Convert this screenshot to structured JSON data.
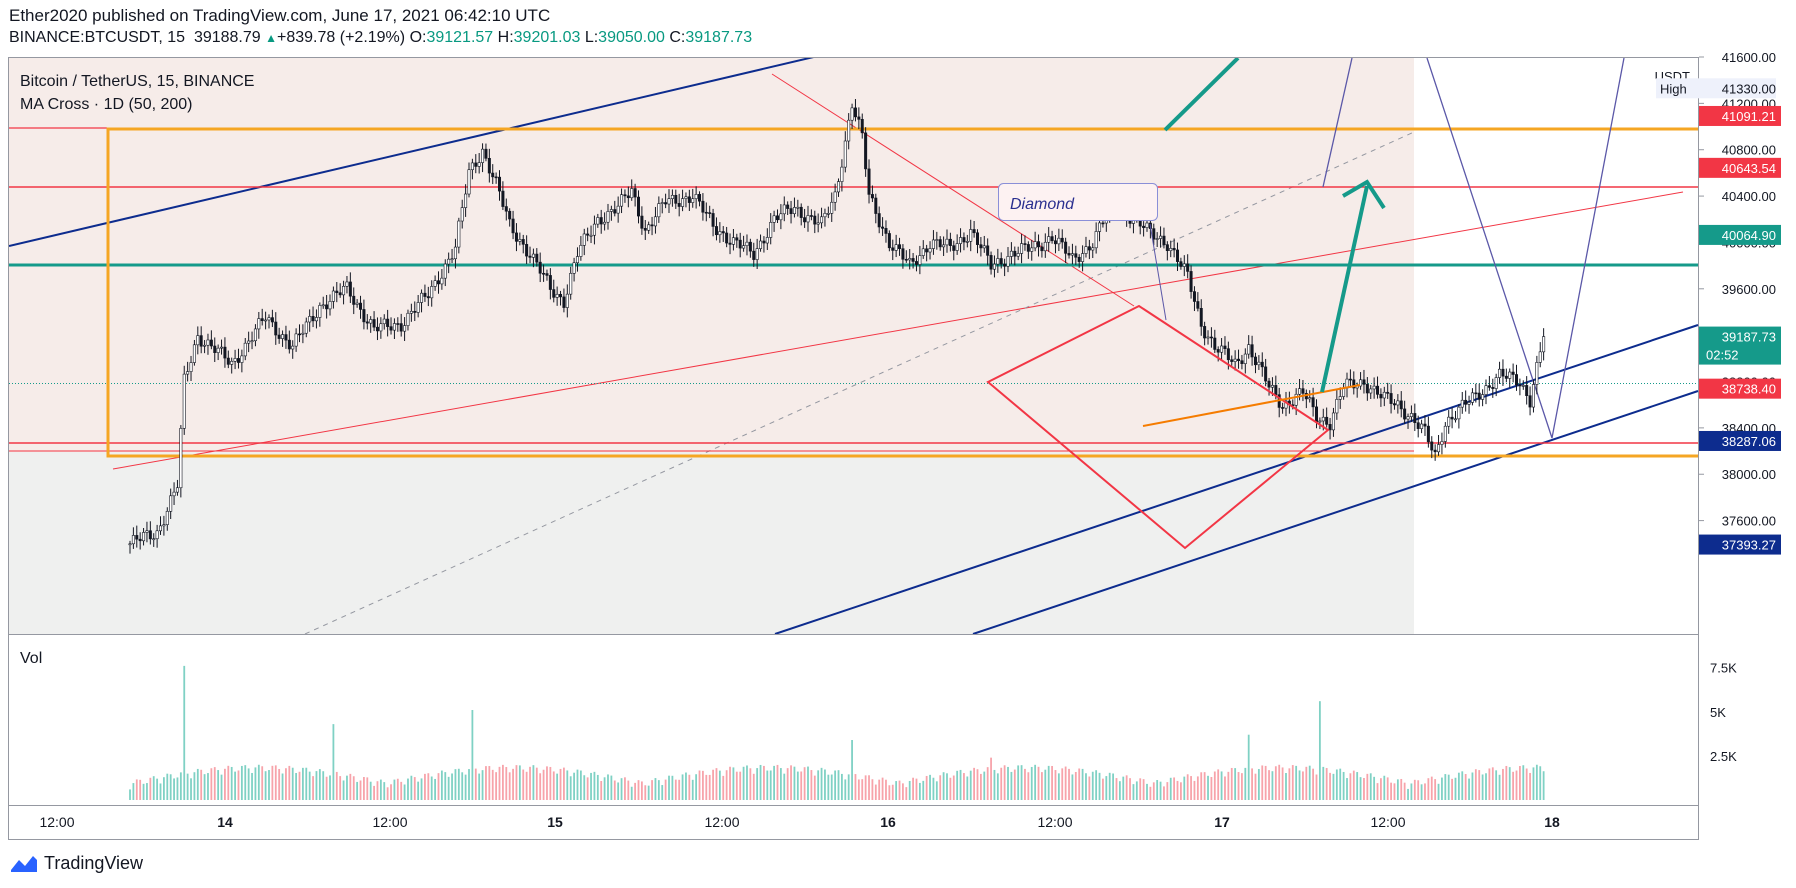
{
  "header": {
    "published": "Ether2020 published on TradingView.com, June 17, 2021 06:42:10 UTC",
    "symbol_line": "BINANCE:BTCUSDT, 15",
    "last": "39188.79",
    "change": "+839.78 (+2.19%)",
    "o_label": "O:",
    "o": "39121.57",
    "h_label": "H:",
    "h": "39201.03",
    "l_label": "L:",
    "l": "39050.00",
    "c_label": "C:",
    "c": "39187.73"
  },
  "legend": {
    "title": "Bitcoin / TetherUS, 15, BINANCE",
    "indicator": "MA Cross · 1D (50, 200)"
  },
  "annotation": {
    "text": "Diamond"
  },
  "colors": {
    "up": "#089981",
    "down": "#f23645",
    "blue": "#0d2c8e",
    "orange": "#f5a623",
    "teal": "#159a8a",
    "red": "#f23645",
    "purple": "#5b58a8"
  },
  "chart_data": {
    "type": "candlestick",
    "title": "Bitcoin / TetherUS, 15, BINANCE",
    "y_unit": "USDT",
    "ylim": [
      37350,
      41650
    ],
    "y_ticks": [
      "41600.00",
      "41200.00",
      "40800.00",
      "40400.00",
      "40000.00",
      "39600.00",
      "39200.00",
      "38800.00",
      "38400.00",
      "38000.00",
      "37600.00"
    ],
    "x_ticks": [
      "12:00",
      "14",
      "12:00",
      "15",
      "12:00",
      "16",
      "12:00",
      "17",
      "12:00",
      "18"
    ],
    "price_labels": [
      {
        "label": "High",
        "value": "41330.00"
      },
      {
        "value": "41091.21"
      },
      {
        "value": "40643.54"
      },
      {
        "value": "40064.90"
      },
      {
        "value": "39187.73",
        "countdown": "02:52"
      },
      {
        "value": "38738.40"
      },
      {
        "value": "38287.06"
      },
      {
        "value": "37393.27"
      }
    ],
    "volume": {
      "label": "Vol",
      "ticks": [
        "7.5K",
        "5K",
        "2.5K"
      ],
      "ylim": [
        0,
        8500
      ]
    },
    "price_path_keypoints": [
      [
        0,
        37400
      ],
      [
        8,
        37500
      ],
      [
        14,
        37900
      ],
      [
        16,
        38800
      ],
      [
        20,
        39200
      ],
      [
        30,
        38950
      ],
      [
        40,
        39350
      ],
      [
        48,
        39100
      ],
      [
        56,
        39450
      ],
      [
        64,
        39600
      ],
      [
        72,
        39250
      ],
      [
        80,
        39300
      ],
      [
        88,
        39550
      ],
      [
        96,
        39950
      ],
      [
        100,
        40600
      ],
      [
        104,
        40800
      ],
      [
        108,
        40500
      ],
      [
        112,
        40150
      ],
      [
        118,
        39900
      ],
      [
        124,
        39600
      ],
      [
        128,
        39500
      ],
      [
        132,
        39900
      ],
      [
        138,
        40200
      ],
      [
        144,
        40300
      ],
      [
        148,
        40450
      ],
      [
        152,
        40100
      ],
      [
        158,
        40350
      ],
      [
        166,
        40400
      ],
      [
        172,
        40150
      ],
      [
        178,
        40000
      ],
      [
        184,
        39900
      ],
      [
        190,
        40200
      ],
      [
        196,
        40300
      ],
      [
        204,
        40150
      ],
      [
        208,
        40400
      ],
      [
        213,
        41200
      ],
      [
        216,
        40900
      ],
      [
        218,
        40400
      ],
      [
        224,
        40000
      ],
      [
        230,
        39800
      ],
      [
        236,
        40000
      ],
      [
        242,
        39950
      ],
      [
        248,
        40100
      ],
      [
        254,
        39800
      ],
      [
        260,
        39900
      ],
      [
        266,
        39950
      ],
      [
        272,
        40050
      ],
      [
        278,
        39850
      ],
      [
        284,
        40000
      ],
      [
        290,
        40350
      ],
      [
        294,
        40250
      ],
      [
        300,
        40100
      ],
      [
        306,
        40000
      ],
      [
        312,
        39700
      ],
      [
        316,
        39300
      ],
      [
        320,
        39100
      ],
      [
        326,
        38950
      ],
      [
        330,
        39100
      ],
      [
        336,
        38750
      ],
      [
        340,
        38600
      ],
      [
        346,
        38700
      ],
      [
        350,
        38500
      ],
      [
        354,
        38450
      ],
      [
        358,
        38750
      ],
      [
        364,
        38800
      ],
      [
        370,
        38650
      ],
      [
        374,
        38600
      ],
      [
        378,
        38500
      ],
      [
        382,
        38350
      ],
      [
        385,
        38150
      ],
      [
        388,
        38450
      ],
      [
        392,
        38550
      ],
      [
        398,
        38700
      ],
      [
        404,
        38850
      ],
      [
        410,
        38800
      ],
      [
        413,
        38650
      ],
      [
        417,
        39190
      ]
    ],
    "drawings": [
      "ascending channel (blue)",
      "range box (orange)",
      "diamond pattern (red)",
      "projection arrow (teal)",
      "horizontal levels"
    ]
  }
}
